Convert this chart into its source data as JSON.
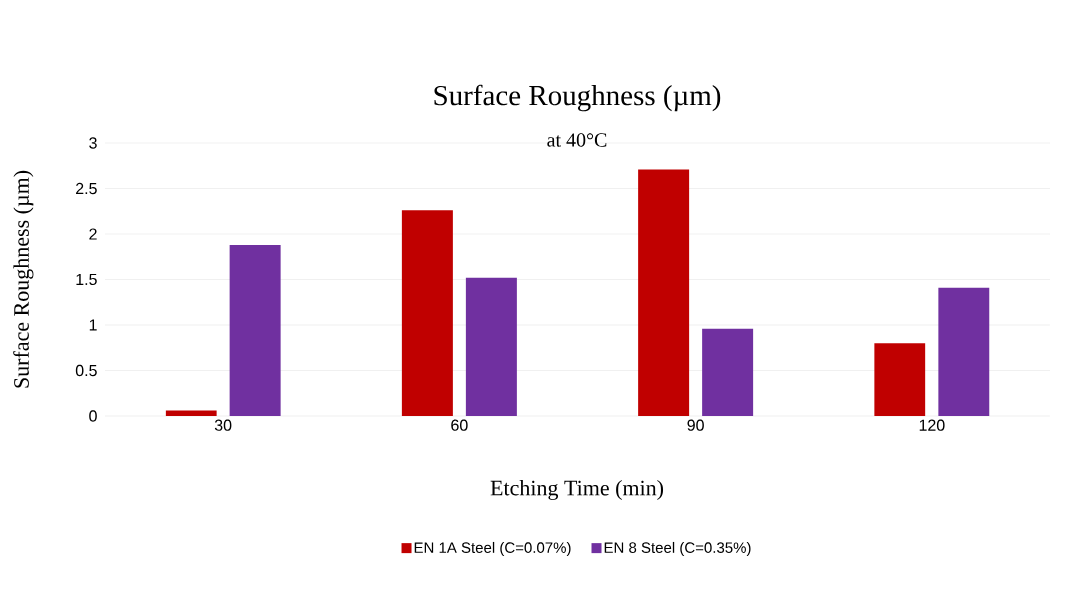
{
  "chart_data": {
    "type": "bar",
    "title": "Surface Roughness (µm)",
    "subtitle": "at 40°C",
    "xlabel": "Etching Time (min)",
    "ylabel": "Surface Roughness (µm)",
    "categories": [
      "30",
      "60",
      "90",
      "120"
    ],
    "series": [
      {
        "name": "EN 1A Steel (C=0.07%)",
        "color": "#c00000",
        "values": [
          0.06,
          2.26,
          2.71,
          0.8
        ]
      },
      {
        "name": "EN 8 Steel (C=0.35%)",
        "color": "#7030a0",
        "values": [
          1.88,
          1.52,
          0.96,
          1.41
        ]
      }
    ],
    "ylim": [
      0,
      3
    ],
    "yticks": [
      0,
      0.5,
      1,
      1.5,
      2,
      2.5,
      3
    ],
    "grid": "y",
    "legend": "bottom"
  }
}
